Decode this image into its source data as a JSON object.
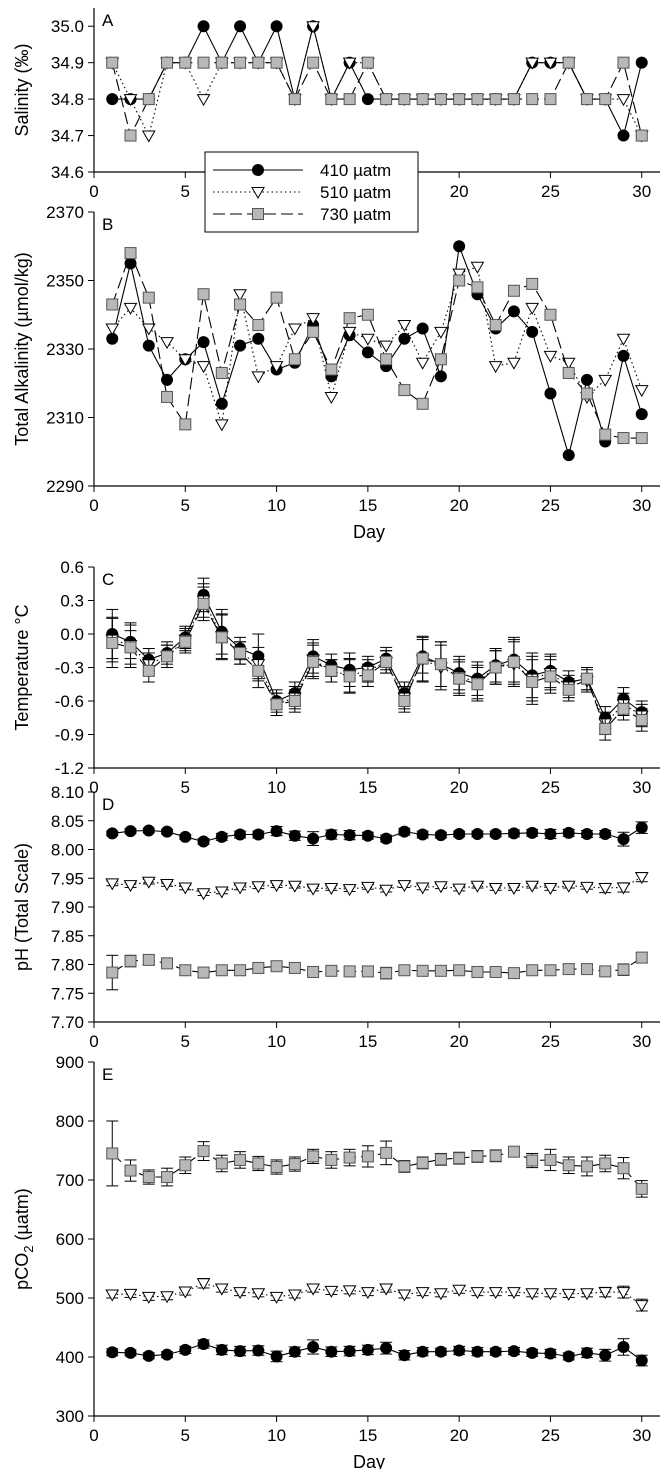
{
  "chart_data": [
    {
      "type": "line",
      "panel_label": "A",
      "xlabel": "",
      "ylabel": "Salinity (‰)",
      "xlim": [
        0,
        31
      ],
      "ylim": [
        34.6,
        35.05
      ],
      "xticks": [
        0,
        5,
        10,
        15,
        20,
        25,
        30
      ],
      "yticks": [
        "34.6",
        "34.7",
        "34.8",
        "34.9",
        "35.0"
      ],
      "x": [
        1,
        2,
        3,
        4,
        5,
        6,
        7,
        8,
        9,
        10,
        11,
        12,
        13,
        14,
        15,
        16,
        17,
        18,
        19,
        20,
        21,
        22,
        23,
        24,
        25,
        26,
        27,
        28,
        29,
        30
      ],
      "series": [
        {
          "name": "410 µatm",
          "values": [
            34.8,
            34.8,
            34.8,
            34.9,
            34.9,
            35.0,
            34.9,
            35.0,
            34.9,
            35.0,
            34.8,
            35.0,
            34.8,
            34.9,
            34.8,
            34.8,
            34.8,
            34.8,
            34.8,
            34.8,
            34.8,
            34.8,
            34.8,
            34.9,
            34.9,
            34.9,
            34.8,
            34.8,
            34.7,
            34.9
          ]
        },
        {
          "name": "510 µatm",
          "values": [
            34.9,
            34.8,
            34.7,
            34.9,
            34.9,
            34.8,
            34.9,
            34.9,
            34.9,
            34.9,
            34.8,
            35.0,
            34.8,
            34.9,
            34.9,
            34.8,
            34.8,
            34.8,
            34.8,
            34.8,
            34.8,
            34.8,
            34.8,
            34.9,
            34.9,
            34.9,
            34.8,
            34.8,
            34.8,
            34.7
          ]
        },
        {
          "name": "730 µatm",
          "values": [
            34.9,
            34.7,
            34.8,
            34.9,
            34.9,
            34.9,
            34.9,
            34.9,
            34.9,
            34.9,
            34.8,
            34.9,
            34.8,
            34.8,
            34.9,
            34.8,
            34.8,
            34.8,
            34.8,
            34.8,
            34.8,
            34.8,
            34.8,
            34.8,
            34.8,
            34.9,
            34.8,
            34.8,
            34.9,
            34.7
          ]
        }
      ],
      "legend": {
        "placement": "upper-left, overlapping panels A and B",
        "entries": [
          "410 µatm",
          "510 µatm",
          "730 µatm"
        ]
      }
    },
    {
      "type": "line",
      "panel_label": "B",
      "xlabel": "Day",
      "ylabel": "Total Alkalinity (µmol/kg)",
      "xlim": [
        0,
        31
      ],
      "ylim": [
        2290,
        2370
      ],
      "xticks": [
        0,
        5,
        10,
        15,
        20,
        25,
        30
      ],
      "yticks": [
        "2290",
        "2310",
        "2330",
        "2350",
        "2370"
      ],
      "x": [
        1,
        2,
        3,
        4,
        5,
        6,
        7,
        8,
        9,
        10,
        11,
        12,
        13,
        14,
        15,
        16,
        17,
        18,
        19,
        20,
        21,
        22,
        23,
        24,
        25,
        26,
        27,
        28,
        29,
        30
      ],
      "series": [
        {
          "name": "410 µatm",
          "values": [
            2333,
            2355,
            2331,
            2321,
            2327,
            2332,
            2314,
            2331,
            2333,
            2324,
            2326,
            2337,
            2322,
            2334,
            2329,
            2325,
            2333,
            2336,
            2322,
            2360,
            2346,
            2336,
            2341,
            2335,
            2317,
            2299,
            2321,
            2303,
            2328,
            2311
          ]
        },
        {
          "name": "510 µatm",
          "values": [
            2336,
            2342,
            2336,
            2332,
            2327,
            2325,
            2308,
            2346,
            2322,
            2325,
            2336,
            2339,
            2316,
            2335,
            2333,
            2331,
            2337,
            2326,
            2335,
            2352,
            2354,
            2325,
            2326,
            2342,
            2328,
            2326,
            2316,
            2321,
            2333,
            2318
          ]
        },
        {
          "name": "730 µatm",
          "values": [
            2343,
            2358,
            2345,
            2316,
            2308,
            2346,
            2323,
            2343,
            2337,
            2345,
            2327,
            2335,
            2324,
            2339,
            2340,
            2327,
            2318,
            2314,
            2327,
            2350,
            2348,
            2337,
            2347,
            2349,
            2340,
            2323,
            2317,
            2305,
            2304,
            2304
          ]
        }
      ]
    },
    {
      "type": "line",
      "panel_label": "C",
      "xlabel": "",
      "ylabel": "Temperature °C",
      "xlim": [
        0,
        31
      ],
      "ylim": [
        -1.2,
        0.6
      ],
      "xticks": [
        0,
        5,
        10,
        15,
        20,
        25,
        30
      ],
      "yticks": [
        "-1.2",
        "-0.9",
        "-0.6",
        "-0.3",
        "0.0",
        "0.3",
        "0.6"
      ],
      "x": [
        1,
        2,
        3,
        4,
        5,
        6,
        7,
        8,
        9,
        10,
        11,
        12,
        13,
        14,
        15,
        16,
        17,
        18,
        19,
        20,
        21,
        22,
        23,
        24,
        25,
        26,
        27,
        28,
        29,
        30
      ],
      "series": [
        {
          "name": "410 µatm",
          "values": [
            0.0,
            -0.07,
            -0.23,
            -0.17,
            -0.03,
            0.35,
            0.02,
            -0.13,
            -0.2,
            -0.6,
            -0.53,
            -0.2,
            -0.28,
            -0.32,
            -0.3,
            -0.22,
            -0.53,
            -0.2,
            -0.27,
            -0.35,
            -0.4,
            -0.28,
            -0.23,
            -0.37,
            -0.33,
            -0.43,
            -0.4,
            -0.75,
            -0.58,
            -0.7
          ],
          "errors": [
            0.22,
            0.15,
            0.1,
            0.1,
            0.1,
            0.15,
            0.2,
            0.1,
            0.2,
            0.1,
            0.1,
            0.15,
            0.1,
            0.15,
            0.1,
            0.1,
            0.1,
            0.15,
            0.2,
            0.15,
            0.15,
            0.15,
            0.2,
            0.2,
            0.15,
            0.1,
            0.1,
            0.1,
            0.1,
            0.1
          ]
        },
        {
          "name": "510 µatm",
          "values": [
            -0.05,
            -0.1,
            -0.27,
            -0.2,
            -0.05,
            0.3,
            -0.02,
            -0.17,
            -0.27,
            -0.63,
            -0.57,
            -0.23,
            -0.33,
            -0.37,
            -0.33,
            -0.25,
            -0.57,
            -0.23,
            -0.3,
            -0.38,
            -0.43,
            -0.3,
            -0.27,
            -0.4,
            -0.35,
            -0.47,
            -0.42,
            -0.8,
            -0.63,
            -0.73
          ],
          "errors": [
            0.2,
            0.2,
            0.1,
            0.1,
            0.1,
            0.15,
            0.2,
            0.1,
            0.15,
            0.1,
            0.1,
            0.15,
            0.1,
            0.15,
            0.1,
            0.1,
            0.1,
            0.2,
            0.2,
            0.15,
            0.15,
            0.15,
            0.2,
            0.2,
            0.15,
            0.1,
            0.1,
            0.1,
            0.1,
            0.1
          ]
        },
        {
          "name": "730 µatm",
          "values": [
            -0.08,
            -0.12,
            -0.33,
            -0.2,
            -0.07,
            0.27,
            -0.03,
            -0.17,
            -0.33,
            -0.63,
            -0.6,
            -0.25,
            -0.33,
            -0.38,
            -0.37,
            -0.25,
            -0.6,
            -0.22,
            -0.27,
            -0.4,
            -0.45,
            -0.3,
            -0.25,
            -0.43,
            -0.38,
            -0.5,
            -0.4,
            -0.85,
            -0.67,
            -0.77
          ],
          "errors": [
            0.22,
            0.15,
            0.1,
            0.1,
            0.1,
            0.15,
            0.2,
            0.1,
            0.15,
            0.1,
            0.1,
            0.15,
            0.1,
            0.15,
            0.1,
            0.1,
            0.1,
            0.2,
            0.2,
            0.15,
            0.15,
            0.15,
            0.2,
            0.2,
            0.15,
            0.1,
            0.1,
            0.1,
            0.1,
            0.1
          ]
        }
      ]
    },
    {
      "type": "line",
      "panel_label": "D",
      "xlabel": "",
      "ylabel": "pH (Total Scale)",
      "xlim": [
        0,
        31
      ],
      "ylim": [
        7.7,
        8.1
      ],
      "xticks": [
        0,
        5,
        10,
        15,
        20,
        25,
        30
      ],
      "yticks": [
        "7.70",
        "7.75",
        "7.80",
        "7.85",
        "7.90",
        "7.95",
        "8.00",
        "8.05",
        "8.10"
      ],
      "x": [
        1,
        2,
        3,
        4,
        5,
        6,
        7,
        8,
        9,
        10,
        11,
        12,
        13,
        14,
        15,
        16,
        17,
        18,
        19,
        20,
        21,
        22,
        23,
        24,
        25,
        26,
        27,
        28,
        29,
        30
      ],
      "series": [
        {
          "name": "410 µatm",
          "values": [
            8.028,
            8.032,
            8.033,
            8.031,
            8.022,
            8.014,
            8.022,
            8.026,
            8.026,
            8.032,
            8.024,
            8.019,
            8.026,
            8.025,
            8.024,
            8.019,
            8.031,
            8.026,
            8.025,
            8.027,
            8.027,
            8.027,
            8.028,
            8.029,
            8.027,
            8.029,
            8.027,
            8.027,
            8.018,
            8.038
          ],
          "errors": [
            0.004,
            0.004,
            0.004,
            0.004,
            0.004,
            0.005,
            0.006,
            0.006,
            0.006,
            0.008,
            0.008,
            0.012,
            0.008,
            0.008,
            0.006,
            0.006,
            0.006,
            0.006,
            0.005,
            0.005,
            0.005,
            0.005,
            0.006,
            0.006,
            0.008,
            0.006,
            0.006,
            0.006,
            0.012,
            0.01
          ]
        },
        {
          "name": "510 µatm",
          "values": [
            7.941,
            7.938,
            7.944,
            7.94,
            7.934,
            7.924,
            7.927,
            7.934,
            7.936,
            7.938,
            7.937,
            7.932,
            7.933,
            7.931,
            7.935,
            7.93,
            7.938,
            7.934,
            7.936,
            7.932,
            7.937,
            7.933,
            7.933,
            7.937,
            7.933,
            7.937,
            7.935,
            7.933,
            7.934,
            7.952
          ],
          "errors": [
            0.004,
            0.004,
            0.004,
            0.004,
            0.004,
            0.004,
            0.004,
            0.004,
            0.004,
            0.004,
            0.004,
            0.004,
            0.004,
            0.004,
            0.004,
            0.004,
            0.004,
            0.004,
            0.004,
            0.004,
            0.004,
            0.004,
            0.004,
            0.004,
            0.004,
            0.004,
            0.004,
            0.008,
            0.008,
            0.008
          ]
        },
        {
          "name": "730 µatm",
          "values": [
            7.786,
            7.806,
            7.808,
            7.802,
            7.79,
            7.786,
            7.79,
            7.79,
            7.794,
            7.797,
            7.794,
            7.787,
            7.789,
            7.788,
            7.788,
            7.785,
            7.79,
            7.789,
            7.789,
            7.79,
            7.787,
            7.787,
            7.785,
            7.79,
            7.79,
            7.792,
            7.792,
            7.788,
            7.791,
            7.812
          ],
          "errors": [
            0.03,
            0.01,
            0.008,
            0.008,
            0.008,
            0.008,
            0.006,
            0.008,
            0.004,
            0.006,
            0.006,
            0.004,
            0.006,
            0.008,
            0.008,
            0.01,
            0.006,
            0.006,
            0.004,
            0.004,
            0.004,
            0.004,
            0.004,
            0.006,
            0.008,
            0.008,
            0.008,
            0.006,
            0.01,
            0.008
          ]
        }
      ]
    },
    {
      "type": "line",
      "panel_label": "E",
      "xlabel": "Day",
      "ylabel": "pCO2 (µatm)",
      "xlim": [
        0,
        31
      ],
      "ylim": [
        300,
        900
      ],
      "xticks": [
        0,
        5,
        10,
        15,
        20,
        25,
        30
      ],
      "yticks": [
        "300",
        "400",
        "500",
        "600",
        "700",
        "800",
        "900"
      ],
      "x": [
        1,
        2,
        3,
        4,
        5,
        6,
        7,
        8,
        9,
        10,
        11,
        12,
        13,
        14,
        15,
        16,
        17,
        18,
        19,
        20,
        21,
        22,
        23,
        24,
        25,
        26,
        27,
        28,
        29,
        30
      ],
      "series": [
        {
          "name": "410 µatm",
          "values": [
            408,
            407,
            402,
            404,
            412,
            422,
            412,
            410,
            411,
            401,
            409,
            417,
            409,
            410,
            412,
            415,
            403,
            409,
            409,
            411,
            409,
            409,
            410,
            407,
            406,
            401,
            407,
            403,
            417,
            394
          ],
          "errors": [
            6,
            5,
            5,
            5,
            6,
            7,
            8,
            8,
            8,
            9,
            8,
            12,
            8,
            8,
            8,
            10,
            8,
            7,
            6,
            7,
            7,
            6,
            6,
            6,
            7,
            6,
            8,
            10,
            14,
            9
          ]
        },
        {
          "name": "510 µatm",
          "values": [
            506,
            507,
            502,
            503,
            511,
            525,
            516,
            510,
            508,
            502,
            506,
            516,
            512,
            513,
            510,
            516,
            506,
            510,
            508,
            514,
            510,
            510,
            510,
            508,
            508,
            507,
            508,
            510,
            510,
            488
          ],
          "errors": [
            6,
            6,
            6,
            6,
            6,
            8,
            6,
            6,
            6,
            6,
            6,
            6,
            6,
            6,
            6,
            6,
            6,
            6,
            6,
            6,
            6,
            6,
            6,
            6,
            6,
            6,
            6,
            8,
            10,
            10
          ]
        },
        {
          "name": "730 µatm",
          "values": [
            745,
            716,
            705,
            705,
            725,
            749,
            728,
            734,
            728,
            722,
            727,
            740,
            734,
            738,
            740,
            746,
            723,
            729,
            735,
            737,
            740,
            741,
            748,
            733,
            734,
            725,
            723,
            728,
            720,
            685
          ],
          "errors": [
            55,
            18,
            12,
            15,
            14,
            16,
            14,
            14,
            12,
            12,
            12,
            12,
            14,
            14,
            18,
            20,
            10,
            10,
            10,
            10,
            10,
            10,
            8,
            12,
            18,
            14,
            16,
            14,
            18,
            14
          ]
        }
      ]
    }
  ]
}
